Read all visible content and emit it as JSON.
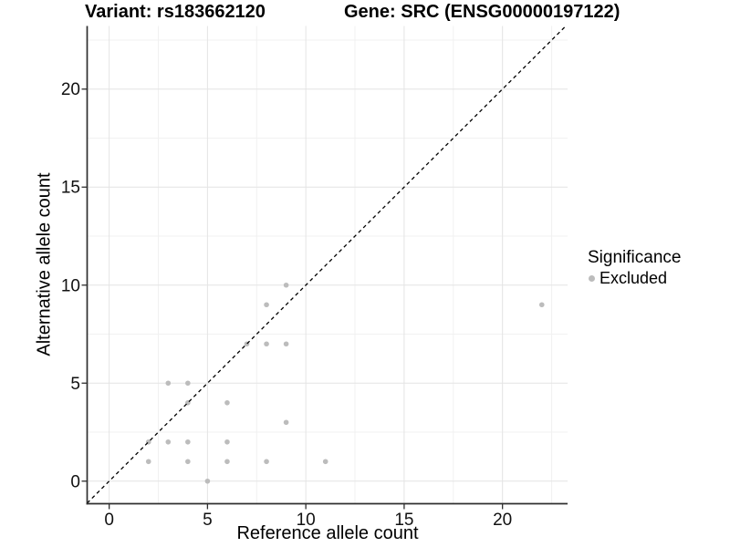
{
  "chart_data": {
    "type": "scatter",
    "title_left": "Variant: rs183662120",
    "title_right": "Gene: SRC (ENSG00000197122)",
    "xlabel": "Reference allele count",
    "ylabel": "Alternative allele count",
    "xlim": [
      -1.12,
      23.31
    ],
    "ylim": [
      -1.15,
      23.22
    ],
    "x_ticks": [
      0,
      5,
      10,
      15,
      20
    ],
    "y_ticks": [
      0,
      5,
      10,
      15,
      20
    ],
    "minor_ticks": [
      2.5,
      7.5,
      12.5,
      17.5,
      22.5
    ],
    "grid": true,
    "abline": {
      "slope": 1,
      "intercept": 0,
      "style": "dashed"
    },
    "series": [
      {
        "name": "Excluded",
        "color": "#bcbcbc",
        "points": [
          [
            2,
            1
          ],
          [
            2,
            2
          ],
          [
            3,
            2
          ],
          [
            3,
            5
          ],
          [
            4,
            1
          ],
          [
            4,
            2
          ],
          [
            4,
            4
          ],
          [
            4,
            5
          ],
          [
            5,
            0
          ],
          [
            6,
            1
          ],
          [
            6,
            2
          ],
          [
            6,
            4
          ],
          [
            7,
            7
          ],
          [
            8,
            1
          ],
          [
            8,
            7
          ],
          [
            8,
            9
          ],
          [
            9,
            3
          ],
          [
            9,
            7
          ],
          [
            9,
            10
          ],
          [
            11,
            1
          ],
          [
            22,
            9
          ]
        ]
      }
    ],
    "legend": {
      "title": "Significance",
      "position": "right",
      "entries": [
        {
          "label": "Excluded",
          "color": "#bcbcbc"
        }
      ]
    },
    "colors": {
      "point": "#bcbcbc",
      "grid_major": "#e4e4e4",
      "grid_minor": "#f1f1f1",
      "axis_line": "#2f2f2f",
      "tick_mark": "#2f2f2f",
      "tick_label": "#111111",
      "abline": "#000000"
    }
  }
}
